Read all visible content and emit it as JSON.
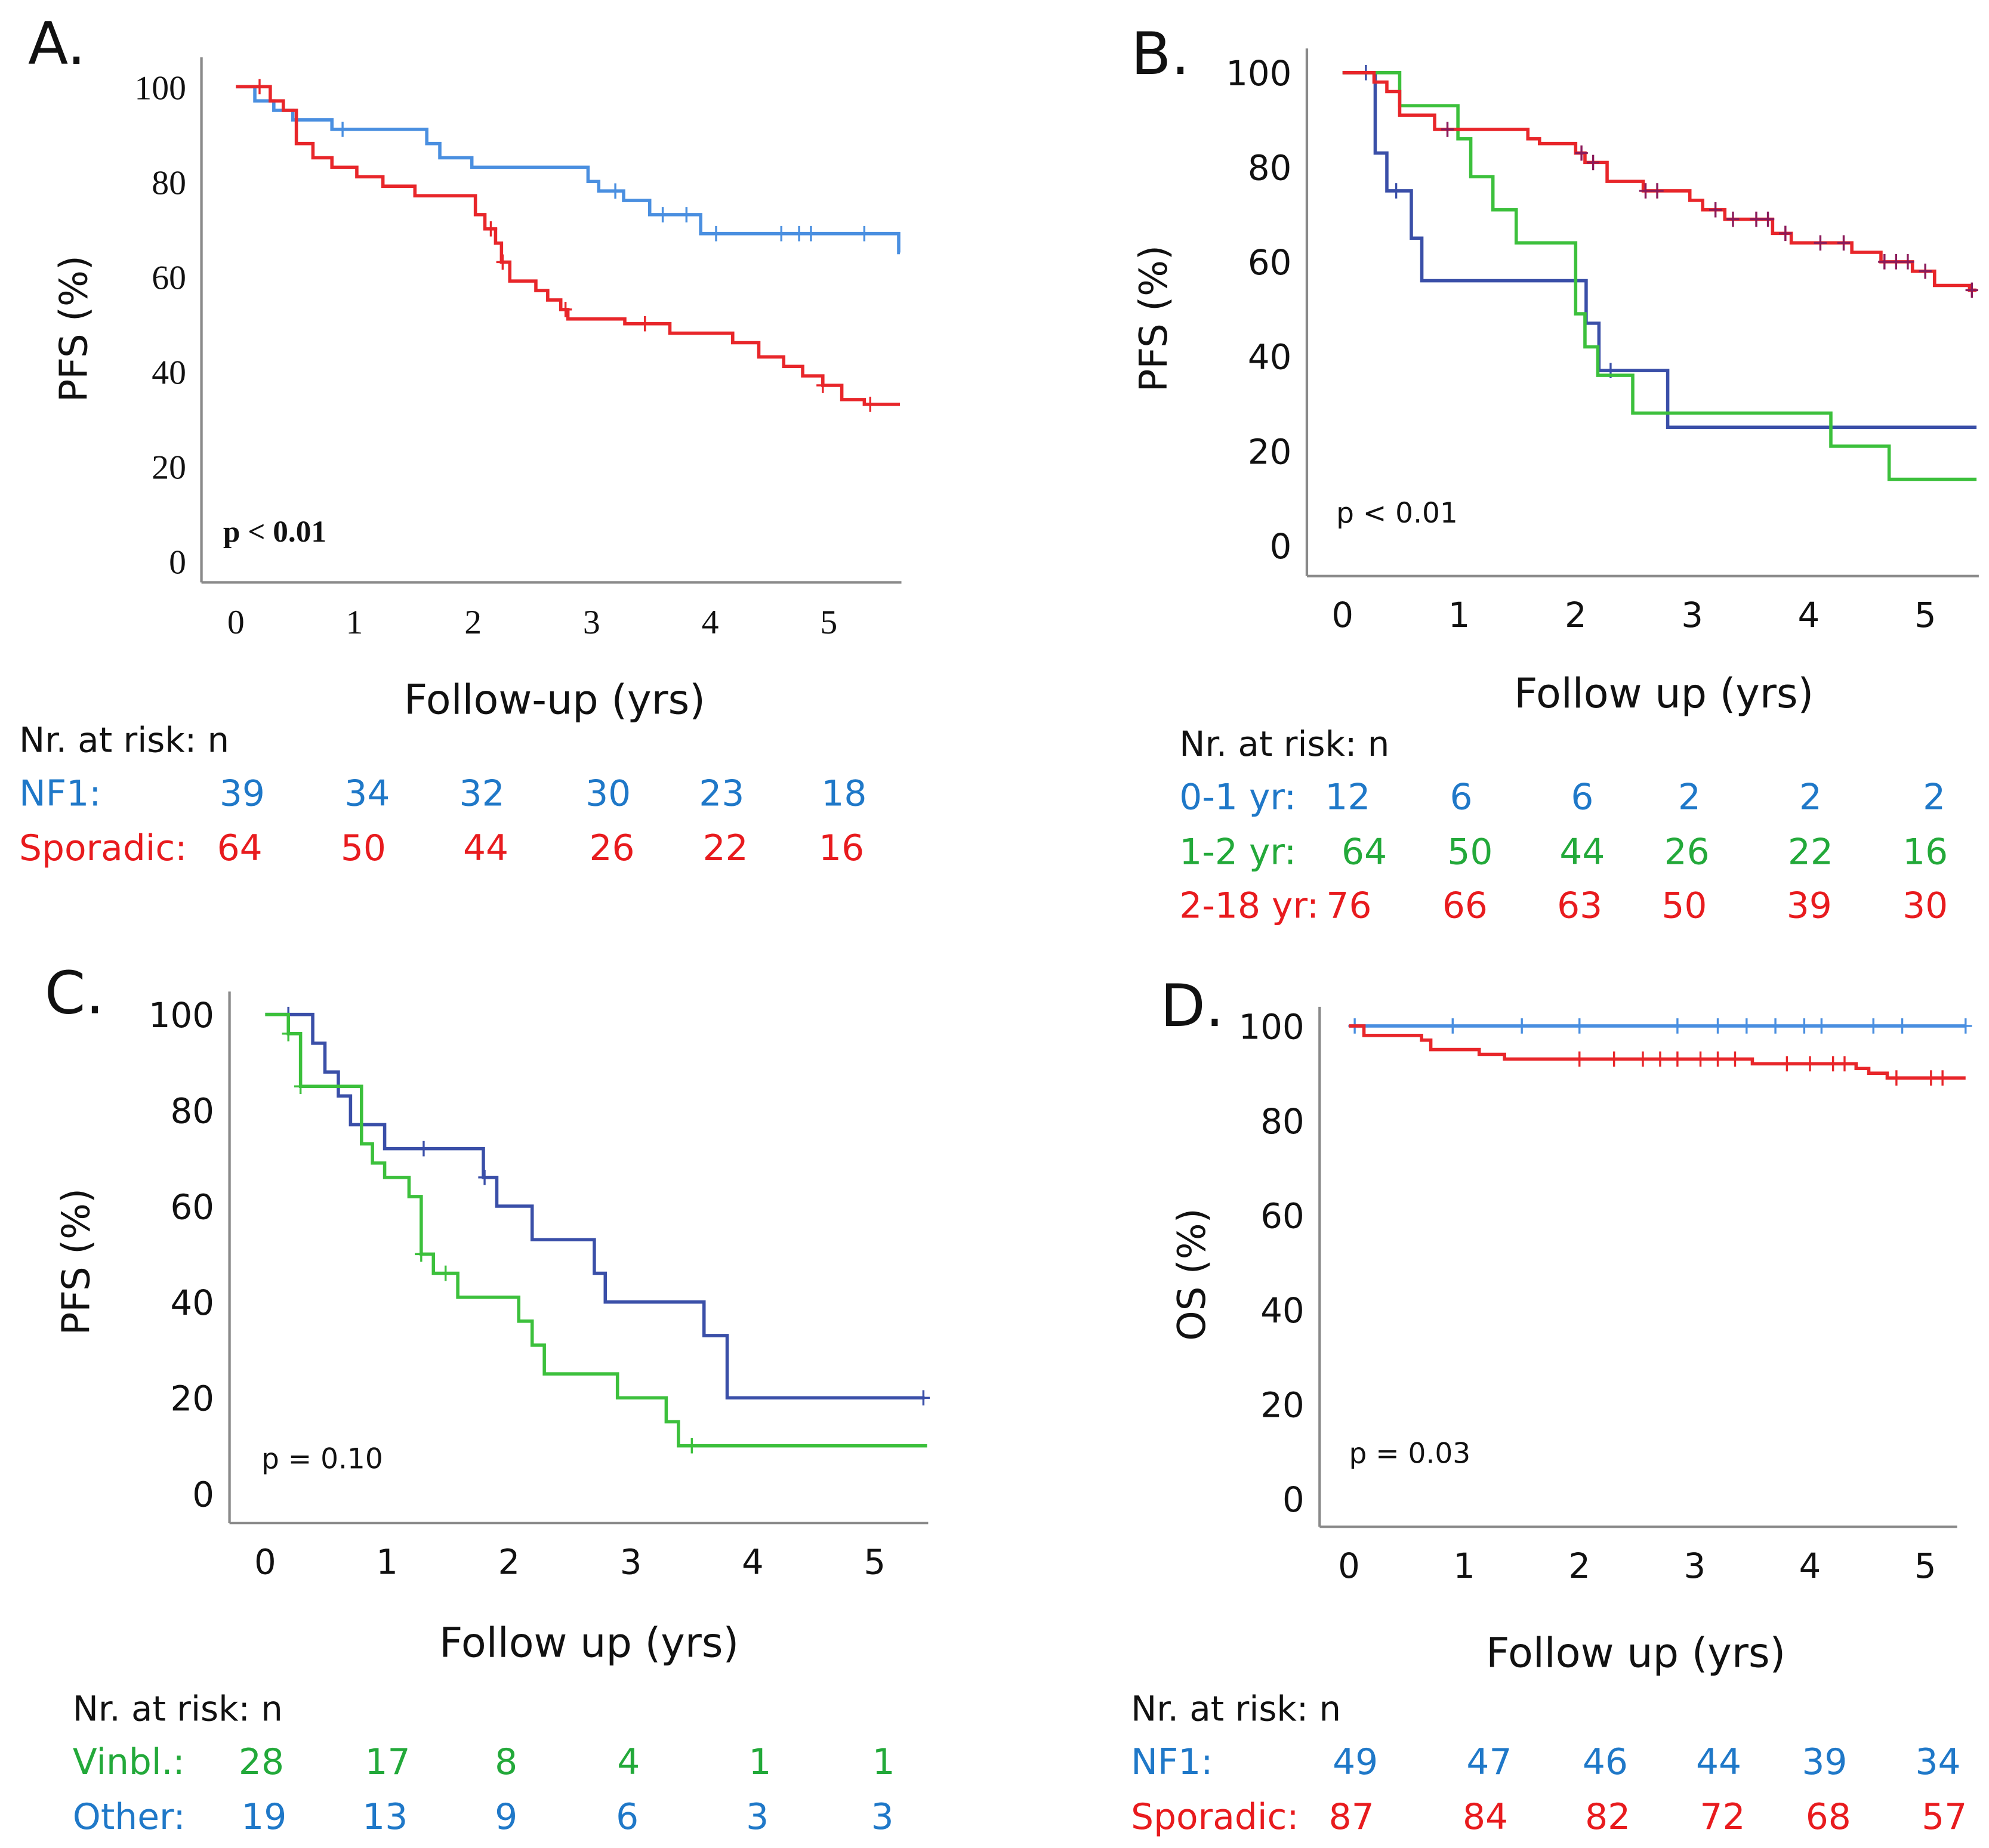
{
  "colors": {
    "nf1_blue": "#4a8fe0",
    "red": "#e8262a",
    "green": "#3cc03c",
    "dark_blue": "#3a4fa8",
    "text_blue": "#1f78c8",
    "text_red": "#e81b1e",
    "text_green": "#23a93a",
    "censor_dark": "#8b1a5a",
    "text": "#111111"
  },
  "chart_data": [
    {
      "type": "line",
      "panel_label": "A.",
      "ylabel": "PFS (%)",
      "xlabel": "Follow-up (yrs)",
      "p_value": "p < 0.01",
      "ylim": [
        0,
        100
      ],
      "xlim": [
        0,
        5.6
      ],
      "yticks": [
        "0",
        "20",
        "40",
        "60",
        "80",
        "100"
      ],
      "xticks": [
        "0",
        "1",
        "2",
        "3",
        "4",
        "5"
      ],
      "grid": false,
      "series": [
        {
          "name": "NF1",
          "color": "#4a8fe0",
          "end": 5.6,
          "steps": [
            [
              0,
              100
            ],
            [
              0.16,
              97
            ],
            [
              0.32,
              95
            ],
            [
              0.48,
              93
            ],
            [
              0.81,
              91
            ],
            [
              1.61,
              88
            ],
            [
              1.72,
              85
            ],
            [
              1.99,
              83
            ],
            [
              2.97,
              80
            ],
            [
              3.06,
              78
            ],
            [
              3.27,
              76
            ],
            [
              3.49,
              73
            ],
            [
              3.92,
              69
            ],
            [
              5.59,
              65
            ]
          ],
          "censored": [
            0.9,
            3.2,
            3.6,
            3.8,
            4.05,
            4.6,
            4.75,
            4.85,
            5.3
          ]
        },
        {
          "name": "Sporadic",
          "color": "#e8262a",
          "end": 5.6,
          "steps": [
            [
              0,
              100
            ],
            [
              0.29,
              97
            ],
            [
              0.4,
              95
            ],
            [
              0.51,
              88
            ],
            [
              0.65,
              85
            ],
            [
              0.81,
              83
            ],
            [
              1.02,
              81
            ],
            [
              1.24,
              79
            ],
            [
              1.51,
              77
            ],
            [
              2.02,
              73
            ],
            [
              2.1,
              70
            ],
            [
              2.19,
              67
            ],
            [
              2.24,
              63
            ],
            [
              2.31,
              59
            ],
            [
              2.53,
              57
            ],
            [
              2.63,
              55
            ],
            [
              2.74,
              53
            ],
            [
              2.8,
              51
            ],
            [
              3.28,
              50
            ],
            [
              3.66,
              48
            ],
            [
              4.19,
              46
            ],
            [
              4.41,
              43
            ],
            [
              4.62,
              41
            ],
            [
              4.78,
              39
            ],
            [
              4.95,
              37
            ],
            [
              5.11,
              34
            ],
            [
              5.3,
              33
            ]
          ],
          "censored": [
            0.2,
            2.15,
            2.25,
            2.78,
            3.45,
            4.95,
            5.35
          ]
        }
      ],
      "risk_table": {
        "header": "Nr. at risk: n",
        "rows": [
          {
            "label": "NF1:",
            "color": "#1f78c8",
            "values": [
              "39",
              "34",
              "32",
              "30",
              "23",
              "18"
            ]
          },
          {
            "label": "Sporadic:",
            "color": "#e81b1e",
            "values": [
              "64",
              "50",
              "44",
              "26",
              "22",
              "16"
            ]
          }
        ]
      }
    },
    {
      "type": "line",
      "panel_label": "B.",
      "ylabel": "PFS (%)",
      "xlabel": "Follow up (yrs)",
      "p_value": "p < 0.01",
      "ylim": [
        0,
        100
      ],
      "xlim": [
        0,
        5.44
      ],
      "yticks": [
        "0",
        "20",
        "40",
        "60",
        "80",
        "100"
      ],
      "xticks": [
        "0",
        "1",
        "2",
        "3",
        "4",
        "5"
      ],
      "grid": false,
      "series": [
        {
          "name": "0-1 yr",
          "color": "#3a4fa8",
          "end": 5.44,
          "steps": [
            [
              0,
              100
            ],
            [
              0.28,
              83
            ],
            [
              0.38,
              75
            ],
            [
              0.59,
              65
            ],
            [
              0.68,
              56
            ],
            [
              2.09,
              47
            ],
            [
              2.2,
              37
            ],
            [
              2.79,
              25
            ]
          ],
          "censored": [
            0.2,
            0.46,
            2.3
          ]
        },
        {
          "name": "1-2 yr",
          "color": "#3cc03c",
          "end": 5.44,
          "steps": [
            [
              0,
              100
            ],
            [
              0.49,
              93
            ],
            [
              0.99,
              86
            ],
            [
              1.1,
              78
            ],
            [
              1.29,
              71
            ],
            [
              1.49,
              64
            ],
            [
              2.0,
              49
            ],
            [
              2.08,
              42
            ],
            [
              2.19,
              36
            ],
            [
              2.49,
              28
            ],
            [
              4.19,
              21
            ],
            [
              4.69,
              14
            ]
          ],
          "censored": []
        },
        {
          "name": "2-18 yr",
          "color": "#e8262a",
          "end": 5.44,
          "steps": [
            [
              0,
              100
            ],
            [
              0.27,
              98
            ],
            [
              0.38,
              96
            ],
            [
              0.49,
              91
            ],
            [
              0.79,
              88
            ],
            [
              1.59,
              86
            ],
            [
              1.69,
              85
            ],
            [
              2.0,
              83
            ],
            [
              2.08,
              81
            ],
            [
              2.27,
              77
            ],
            [
              2.58,
              75
            ],
            [
              2.98,
              73
            ],
            [
              3.09,
              71
            ],
            [
              3.28,
              69
            ],
            [
              3.69,
              66
            ],
            [
              3.85,
              64
            ],
            [
              4.37,
              62
            ],
            [
              4.62,
              60
            ],
            [
              4.89,
              58
            ],
            [
              5.08,
              55
            ],
            [
              5.38,
              54
            ]
          ],
          "censored": [
            0.9,
            2.05,
            2.15,
            2.6,
            2.7,
            3.2,
            3.35,
            3.55,
            3.65,
            3.8,
            4.1,
            4.3,
            4.65,
            4.75,
            4.85,
            5.0,
            5.4
          ]
        }
      ],
      "risk_table": {
        "header": "Nr. at risk: n",
        "rows": [
          {
            "label": "0-1 yr:",
            "color": "#1f78c8",
            "values": [
              "12",
              "6",
              "6",
              "2",
              "2",
              "2"
            ]
          },
          {
            "label": "1-2 yr:",
            "color": "#23a93a",
            "values": [
              "64",
              "50",
              "44",
              "26",
              "22",
              "16"
            ]
          },
          {
            "label": "2-18 yr:",
            "color": "#e81b1e",
            "values": [
              "76",
              "66",
              "63",
              "50",
              "39",
              "30"
            ]
          }
        ]
      }
    },
    {
      "type": "line",
      "panel_label": "C.",
      "ylabel": "PFS (%)",
      "xlabel": "Follow up (yrs)",
      "p_value": "p = 0.10",
      "ylim": [
        0,
        100
      ],
      "xlim": [
        0,
        5.43
      ],
      "yticks": [
        "0",
        "20",
        "40",
        "60",
        "80",
        "100"
      ],
      "xticks": [
        "0",
        "1",
        "2",
        "3",
        "4",
        "5"
      ],
      "grid": false,
      "series": [
        {
          "name": "Other",
          "color": "#3a4fa8",
          "end": 5.41,
          "steps": [
            [
              0,
              100
            ],
            [
              0.39,
              94
            ],
            [
              0.49,
              88
            ],
            [
              0.6,
              83
            ],
            [
              0.7,
              77
            ],
            [
              0.98,
              72
            ],
            [
              1.79,
              66
            ],
            [
              1.9,
              60
            ],
            [
              2.19,
              53
            ],
            [
              2.7,
              46
            ],
            [
              2.79,
              40
            ],
            [
              3.6,
              33
            ],
            [
              3.79,
              20
            ]
          ],
          "censored": [
            0.19,
            1.3,
            1.8,
            5.4
          ]
        },
        {
          "name": "Vinbl.",
          "color": "#3cc03c",
          "end": 5.43,
          "steps": [
            [
              0,
              100
            ],
            [
              0.19,
              96
            ],
            [
              0.29,
              85
            ],
            [
              0.79,
              73
            ],
            [
              0.88,
              69
            ],
            [
              0.98,
              66
            ],
            [
              1.18,
              62
            ],
            [
              1.28,
              50
            ],
            [
              1.38,
              46
            ],
            [
              1.58,
              41
            ],
            [
              2.08,
              36
            ],
            [
              2.19,
              31
            ],
            [
              2.29,
              25
            ],
            [
              2.89,
              20
            ],
            [
              3.29,
              15
            ],
            [
              3.39,
              10
            ]
          ],
          "censored": [
            0.19,
            0.29,
            1.28,
            1.48,
            3.5
          ]
        }
      ],
      "risk_table": {
        "header": "Nr. at risk: n",
        "rows": [
          {
            "label": "Vinbl.:",
            "color": "#23a93a",
            "values": [
              "28",
              "17",
              "8",
              "4",
              "1",
              "1"
            ]
          },
          {
            "label": "Other:",
            "color": "#1f78c8",
            "values": [
              "19",
              "13",
              "9",
              "6",
              "3",
              "3"
            ]
          }
        ]
      }
    },
    {
      "type": "line",
      "panel_label": "D.",
      "ylabel": "OS (%)",
      "xlabel": "Follow up (yrs)",
      "p_value": "p = 0.03",
      "ylim": [
        0,
        100
      ],
      "xlim": [
        0,
        5.35
      ],
      "yticks": [
        "0",
        "20",
        "40",
        "60",
        "80",
        "100"
      ],
      "xticks": [
        "0",
        "1",
        "2",
        "3",
        "4",
        "5"
      ],
      "grid": false,
      "series": [
        {
          "name": "NF1",
          "color": "#4a8fe0",
          "end": 5.35,
          "steps": [
            [
              0,
              100
            ]
          ],
          "censored": [
            0.05,
            0.9,
            1.5,
            2.0,
            2.85,
            3.2,
            3.45,
            3.7,
            3.95,
            4.1,
            4.55,
            4.8,
            5.35
          ]
        },
        {
          "name": "Sporadic",
          "color": "#e8262a",
          "end": 5.35,
          "steps": [
            [
              0,
              100
            ],
            [
              0.13,
              98
            ],
            [
              0.63,
              97
            ],
            [
              0.71,
              95
            ],
            [
              1.13,
              94
            ],
            [
              1.35,
              93
            ],
            [
              3.5,
              92
            ],
            [
              4.4,
              91
            ],
            [
              4.51,
              90
            ],
            [
              4.67,
              89
            ]
          ],
          "censored": [
            2.0,
            2.3,
            2.55,
            2.7,
            2.85,
            3.05,
            3.2,
            3.35,
            3.8,
            4.0,
            4.2,
            4.3,
            4.75,
            5.05,
            5.15
          ]
        }
      ],
      "risk_table": {
        "header": "Nr. at risk: n",
        "rows": [
          {
            "label": "NF1:",
            "color": "#1f78c8",
            "values": [
              "49",
              "47",
              "46",
              "44",
              "39",
              "34"
            ]
          },
          {
            "label": "Sporadic:",
            "color": "#e81b1e",
            "values": [
              "87",
              "84",
              "82",
              "72",
              "68",
              "57"
            ]
          }
        ]
      }
    }
  ]
}
